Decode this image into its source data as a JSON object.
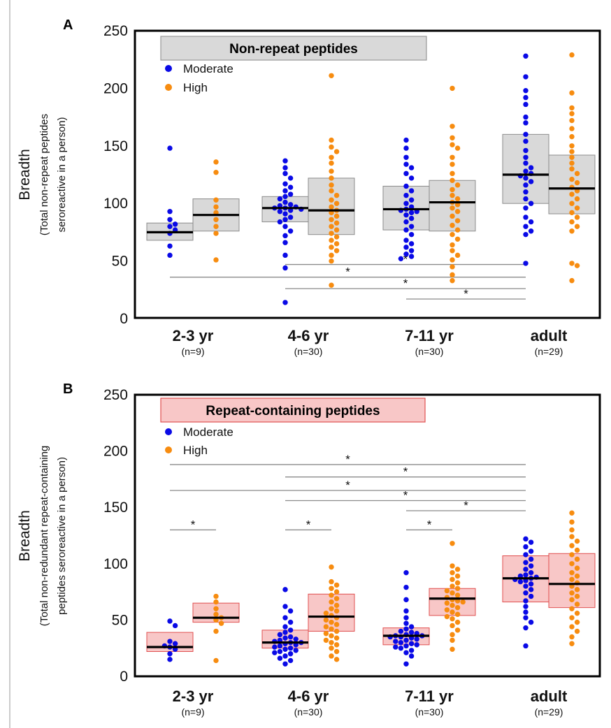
{
  "chart_data": [
    {
      "type": "scatter",
      "panel_label": "A",
      "title": "Non-repeat peptides",
      "ylabel": "Breadth",
      "ylabel_sub_1": "(Total non-repeat peptides",
      "ylabel_sub_2": "seroreactive in a person)",
      "ylim": [
        0,
        250
      ],
      "yticks": [
        0,
        50,
        100,
        150,
        200,
        250
      ],
      "groups": [
        {
          "label": "2-3 yr",
          "n": "(n=9)"
        },
        {
          "label": "4-6 yr",
          "n": "(n=30)"
        },
        {
          "label": "7-11 yr",
          "n": "(n=30)"
        },
        {
          "label": "adult",
          "n": "(n=29)"
        }
      ],
      "legend": {
        "position": "top-left"
      },
      "series": [
        {
          "name": "Moderate",
          "color": "#0a0ae6",
          "boxes": [
            {
              "q1": 68,
              "median": 75,
              "q3": 83
            },
            {
              "q1": 84,
              "median": 96,
              "q3": 106
            },
            {
              "q1": 77,
              "median": 95,
              "q3": 115
            },
            {
              "q1": 100,
              "median": 125,
              "q3": 160
            }
          ],
          "points": [
            [
              148,
              93,
              86,
              82,
              80,
              77,
              74,
              63,
              55
            ],
            [
              137,
              131,
              126,
              122,
              117,
              114,
              111,
              108,
              106,
              104,
              101,
              99,
              98,
              97,
              96,
              96,
              95,
              94,
              93,
              91,
              88,
              86,
              84,
              80,
              76,
              72,
              66,
              55,
              44,
              14
            ],
            [
              155,
              148,
              140,
              134,
              131,
              126,
              122,
              115,
              111,
              107,
              103,
              100,
              97,
              95,
              94,
              93,
              92,
              90,
              87,
              84,
              80,
              77,
              73,
              68,
              65,
              62,
              59,
              56,
              54,
              52
            ],
            [
              228,
              210,
              198,
              192,
              186,
              175,
              170,
              160,
              154,
              146,
              140,
              135,
              131,
              128,
              126,
              124,
              122,
              119,
              116,
              110,
              104,
              100,
              96,
              88,
              84,
              80,
              76,
              73,
              48
            ]
          ]
        },
        {
          "name": "High",
          "color": "#f78c10",
          "boxes": [
            {
              "q1": 76,
              "median": 90,
              "q3": 104
            },
            {
              "q1": 73,
              "median": 94,
              "q3": 122
            },
            {
              "q1": 76,
              "median": 101,
              "q3": 120
            },
            {
              "q1": 91,
              "median": 113,
              "q3": 142
            }
          ],
          "points": [
            [
              136,
              127,
              103,
              97,
              92,
              86,
              80,
              74,
              51
            ],
            [
              211,
              155,
              149,
              145,
              140,
              135,
              128,
              122,
              116,
              111,
              107,
              103,
              100,
              97,
              94,
              92,
              89,
              86,
              83,
              80,
              77,
              74,
              71,
              68,
              65,
              62,
              59,
              55,
              50,
              29
            ],
            [
              200,
              167,
              157,
              151,
              148,
              140,
              134,
              126,
              120,
              116,
              112,
              107,
              104,
              101,
              99,
              96,
              93,
              89,
              85,
              81,
              77,
              73,
              69,
              64,
              59,
              55,
              51,
              45,
              38,
              33
            ],
            [
              229,
              196,
              183,
              178,
              172,
              165,
              158,
              150,
              145,
              140,
              135,
              130,
              126,
              121,
              118,
              114,
              111,
              108,
              104,
              100,
              96,
              92,
              88,
              84,
              80,
              76,
              48,
              46,
              33
            ]
          ]
        }
      ],
      "significance": [
        {
          "from_group": "4-6 yr",
          "to_group": "adult",
          "y": 47,
          "label": "*"
        },
        {
          "from_group": "2-3 yr",
          "to_group": "adult",
          "y": 36,
          "label": "*"
        },
        {
          "from_group": "4-6 yr",
          "to_group": "adult",
          "y": 26,
          "label": "*"
        },
        {
          "from_group": "7-11 yr",
          "to_group": "adult",
          "y": 17,
          "label": "*"
        }
      ]
    },
    {
      "type": "scatter",
      "panel_label": "B",
      "title": "Repeat-containing peptides",
      "ylabel": "Breadth",
      "ylabel_sub_1": "(Total non-redundant repeat-containing",
      "ylabel_sub_2": "peptides seroreactive in a person)",
      "ylim": [
        0,
        250
      ],
      "yticks": [
        0,
        50,
        100,
        150,
        200,
        250
      ],
      "groups": [
        {
          "label": "2-3 yr",
          "n": "(n=9)"
        },
        {
          "label": "4-6 yr",
          "n": "(n=30)"
        },
        {
          "label": "7-11 yr",
          "n": "(n=30)"
        },
        {
          "label": "adult",
          "n": "(n=29)"
        }
      ],
      "legend": {
        "position": "top-left"
      },
      "series": [
        {
          "name": "Moderate",
          "color": "#0a0ae6",
          "boxes": [
            {
              "q1": 22,
              "median": 26,
              "q3": 39
            },
            {
              "q1": 25,
              "median": 30,
              "q3": 41
            },
            {
              "q1": 28,
              "median": 36,
              "q3": 43
            },
            {
              "q1": 66,
              "median": 87,
              "q3": 107
            }
          ],
          "points": [
            [
              49,
              45,
              31,
              29,
              27,
              26,
              24,
              20,
              15
            ],
            [
              77,
              62,
              58,
              52,
              48,
              44,
              41,
              39,
              37,
              35,
              34,
              33,
              32,
              31,
              30,
              30,
              29,
              28,
              27,
              26,
              25,
              24,
              23,
              22,
              21,
              20,
              18,
              16,
              14,
              11
            ],
            [
              92,
              79,
              68,
              58,
              52,
              47,
              44,
              42,
              40,
              39,
              38,
              37,
              36,
              36,
              35,
              35,
              34,
              33,
              32,
              31,
              30,
              29,
              28,
              27,
              26,
              25,
              23,
              21,
              18,
              11
            ],
            [
              122,
              119,
              115,
              111,
              108,
              104,
              101,
              98,
              95,
              92,
              90,
              89,
              88,
              87,
              86,
              85,
              84,
              82,
              80,
              77,
              74,
              71,
              67,
              62,
              57,
              52,
              48,
              43,
              27
            ]
          ]
        },
        {
          "name": "High",
          "color": "#f78c10",
          "boxes": [
            {
              "q1": 48,
              "median": 52,
              "q3": 65
            },
            {
              "q1": 40,
              "median": 53,
              "q3": 73
            },
            {
              "q1": 54,
              "median": 69,
              "q3": 78
            },
            {
              "q1": 61,
              "median": 82,
              "q3": 109
            }
          ],
          "points": [
            [
              71,
              66,
              60,
              55,
              52,
              50,
              47,
              40,
              14
            ],
            [
              97,
              84,
              81,
              78,
              75,
              72,
              69,
              66,
              63,
              60,
              58,
              56,
              54,
              52,
              50,
              48,
              46,
              44,
              42,
              40,
              38,
              36,
              34,
              32,
              30,
              28,
              25,
              22,
              18,
              15
            ],
            [
              118,
              98,
              95,
              92,
              89,
              86,
              83,
              80,
              78,
              76,
              74,
              72,
              70,
              68,
              67,
              66,
              65,
              63,
              61,
              59,
              57,
              55,
              53,
              51,
              48,
              45,
              41,
              37,
              32,
              24
            ],
            [
              145,
              137,
              130,
              124,
              120,
              116,
              112,
              108,
              104,
              100,
              96,
              92,
              89,
              86,
              83,
              80,
              77,
              74,
              71,
              68,
              64,
              60,
              56,
              52,
              48,
              44,
              40,
              35,
              29
            ]
          ]
        }
      ],
      "significance": [
        {
          "from_group": "2-3 yr",
          "to_group": "2-3 yr",
          "y": 130,
          "label": "*"
        },
        {
          "from_group": "4-6 yr",
          "to_group": "4-6 yr",
          "y": 130,
          "label": "*"
        },
        {
          "from_group": "7-11 yr",
          "to_group": "7-11 yr",
          "y": 130,
          "label": "*"
        },
        {
          "from_group": "2-3 yr",
          "to_group": "adult",
          "y": 188,
          "label": "*"
        },
        {
          "from_group": "4-6 yr",
          "to_group": "adult",
          "y": 177,
          "label": "*"
        },
        {
          "from_group": "2-3 yr",
          "to_group": "adult",
          "y": 165,
          "label": "*"
        },
        {
          "from_group": "4-6 yr",
          "to_group": "adult",
          "y": 156,
          "label": "*"
        },
        {
          "from_group": "7-11 yr",
          "to_group": "adult",
          "y": 147,
          "label": "*"
        }
      ]
    }
  ]
}
